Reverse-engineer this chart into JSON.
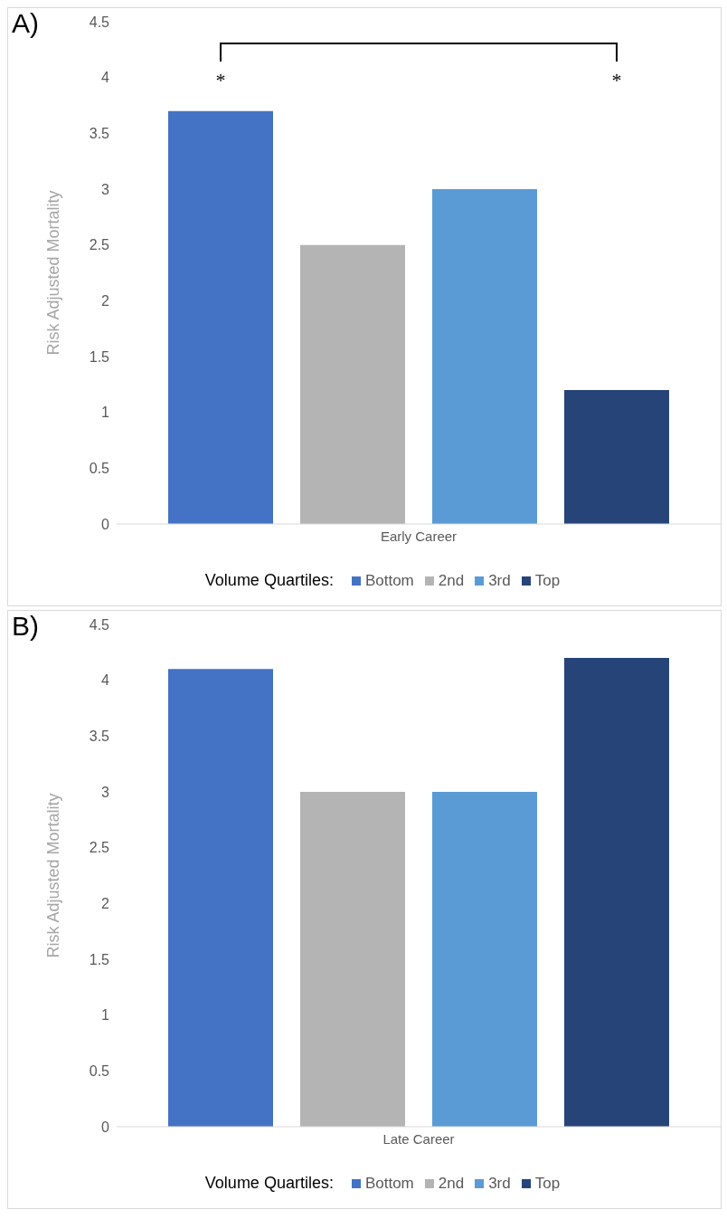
{
  "chart_data": [
    {
      "type": "bar",
      "title": "A)",
      "ylabel": "Risk Adjusted Mortality",
      "legend_title": "Volume Quartiles:",
      "categories": [
        "Early Career"
      ],
      "series": [
        {
          "name": "Bottom",
          "color": "#4472c4",
          "values": [
            3.7
          ]
        },
        {
          "name": "2nd",
          "color": "#b4b4b4",
          "values": [
            2.5
          ]
        },
        {
          "name": "3rd",
          "color": "#5b9bd5",
          "values": [
            3.0
          ]
        },
        {
          "name": "Top",
          "color": "#264478",
          "values": [
            1.2
          ]
        }
      ],
      "ylim": [
        0,
        4.5
      ],
      "yticks": [
        0,
        0.5,
        1,
        1.5,
        2,
        2.5,
        3,
        3.5,
        4,
        4.5
      ],
      "grid": false,
      "legend": "bottom",
      "annotations": [
        "*",
        "*"
      ]
    },
    {
      "type": "bar",
      "title": "B)",
      "ylabel": "Risk Adjusted Mortality",
      "legend_title": "Volume Quartiles:",
      "categories": [
        "Late Career"
      ],
      "series": [
        {
          "name": "Bottom",
          "color": "#4472c4",
          "values": [
            4.1
          ]
        },
        {
          "name": "2nd",
          "color": "#b4b4b4",
          "values": [
            3.0
          ]
        },
        {
          "name": "3rd",
          "color": "#5b9bd5",
          "values": [
            3.0
          ]
        },
        {
          "name": "Top",
          "color": "#264478",
          "values": [
            4.2
          ]
        }
      ],
      "ylim": [
        0,
        4.5
      ],
      "yticks": [
        0,
        0.5,
        1,
        1.5,
        2,
        2.5,
        3,
        3.5,
        4,
        4.5
      ],
      "grid": false,
      "legend": "bottom"
    }
  ]
}
